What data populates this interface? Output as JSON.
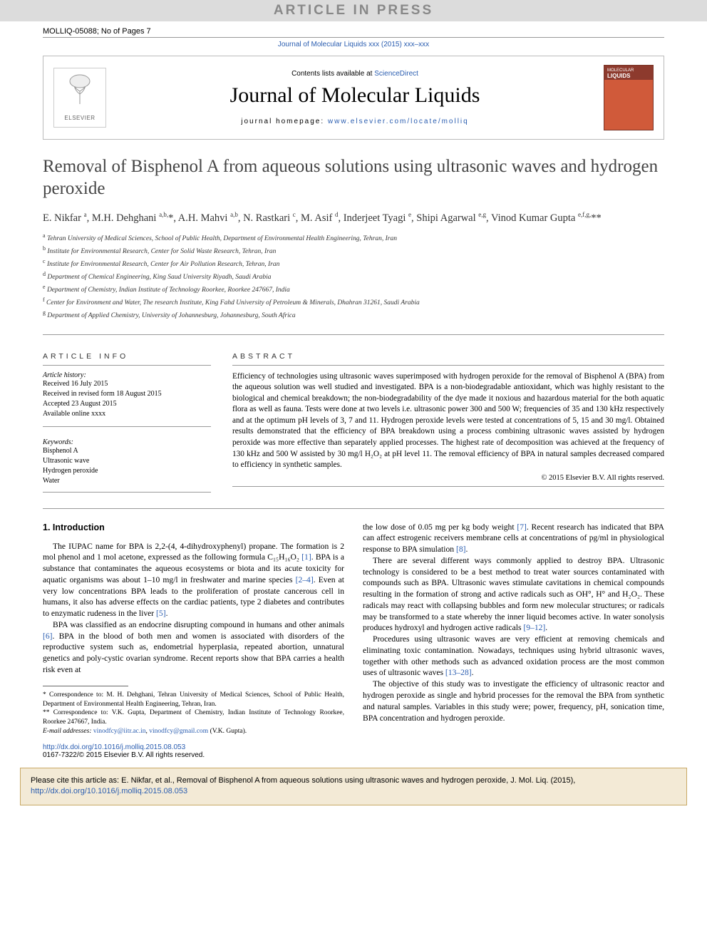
{
  "colors": {
    "link": "#2a5db0",
    "banner_bg": "#dcdcdc",
    "banner_fg": "#888888",
    "cite_bg": "#f3ead6",
    "cite_border": "#c8a864"
  },
  "banner": {
    "text": "ARTICLE IN PRESS"
  },
  "topline": {
    "ref": "MOLLIQ-05088; No of Pages 7"
  },
  "journal_link": "Journal of Molecular Liquids xxx (2015) xxx–xxx",
  "header": {
    "contents_line": "Contents lists available at ",
    "contents_link": "ScienceDirect",
    "journal_name": "Journal of Molecular Liquids",
    "homepage_label": "journal homepage: ",
    "homepage_url": "www.elsevier.com/locate/molliq",
    "publisher": "ELSEVIER",
    "cover_small": "MOLECULAR",
    "cover_big": "LIQUIDS"
  },
  "title": "Removal of Bisphenol A from aqueous solutions using ultrasonic waves and hydrogen peroxide",
  "authors_html": "E. Nikfar <sup>a</sup>, M.H. Dehghani <sup>a,b,</sup>*, A.H. Mahvi <sup>a,b</sup>, N. Rastkari <sup>c</sup>, M. Asif <sup>d</sup>, Inderjeet Tyagi <sup>e</sup>, Shipi Agarwal <sup>e,g</sup>, Vinod Kumar Gupta <sup>e,f,g,</sup>**",
  "affiliations": [
    {
      "sup": "a",
      "text": "Tehran University of Medical Sciences, School of Public Health, Department of Environmental Health Engineering, Tehran, Iran"
    },
    {
      "sup": "b",
      "text": "Institute for Environmental Research, Center for Solid Waste Research, Tehran, Iran"
    },
    {
      "sup": "c",
      "text": "Institute for Environmental Research, Center for Air Pollution Research, Tehran, Iran"
    },
    {
      "sup": "d",
      "text": "Department of Chemical Engineering, King Saud University Riyadh, Saudi Arabia"
    },
    {
      "sup": "e",
      "text": "Department of Chemistry, Indian Institute of Technology Roorkee, Roorkee 247667, India"
    },
    {
      "sup": "f",
      "text": "Center for Environment and Water, The research Institute, King Fahd University of Petroleum & Minerals, Dhahran 31261, Saudi Arabia"
    },
    {
      "sup": "g",
      "text": "Department of Applied Chemistry, University of Johannesburg, Johannesburg, South Africa"
    }
  ],
  "article_info": {
    "heading": "ARTICLE INFO",
    "history_head": "Article history:",
    "history": [
      "Received 16 July 2015",
      "Received in revised form 18 August 2015",
      "Accepted 23 August 2015",
      "Available online xxxx"
    ],
    "kw_head": "Keywords:",
    "keywords": [
      "Bisphenol A",
      "Ultrasonic wave",
      "Hydrogen peroxide",
      "Water"
    ]
  },
  "abstract": {
    "heading": "ABSTRACT",
    "text": "Efficiency of technologies using ultrasonic waves superimposed with hydrogen peroxide for the removal of Bisphenol A (BPA) from the aqueous solution was well studied and investigated. BPA is a non-biodegradable antioxidant, which was highly resistant to the biological and chemical breakdown; the non-biodegradability of the dye made it noxious and hazardous material for the both aquatic flora as well as fauna. Tests were done at two levels i.e. ultrasonic power 300 and 500 W; frequencies of 35 and 130 kHz respectively and at the optimum pH levels of 3, 7 and 11. Hydrogen peroxide levels were tested at concentrations of 5, 15 and 30 mg/l. Obtained results demonstrated that the efficiency of BPA breakdown using a process combining ultrasonic waves assisted by hydrogen peroxide was more effective than separately applied processes. The highest rate of decomposition was achieved at the frequency of 130 kHz and 500 W assisted by 30 mg/l H₂O₂ at pH level 11. The removal efficiency of BPA in natural samples decreased compared to efficiency in synthetic samples.",
    "copyright": "© 2015 Elsevier B.V. All rights reserved."
  },
  "section1": {
    "heading": "1. Introduction",
    "p1": "The IUPAC name for BPA is 2,2-(4, 4-dihydroxyphenyl) propane. The formation is 2 mol phenol and 1 mol acetone, expressed as the following formula C₁₅H₁₆O₂ ",
    "r1": "[1]",
    "p1b": ". BPA is a substance that contaminates the aqueous ecosystems or biota and its acute toxicity for aquatic organisms was about 1–10 mg/l in freshwater and marine species ",
    "r2": "[2–4]",
    "p1c": ". Even at very low concentrations BPA leads to the proliferation of prostate cancerous cell in humans, it also has adverse effects on the cardiac patients, type 2 diabetes and contributes to enzymatic rudeness in the liver ",
    "r3": "[5]",
    "p1d": ".",
    "p2a": "BPA was classified as an endocrine disrupting compound in humans and other animals ",
    "r4": "[6]",
    "p2b": ". BPA in the blood of both men and women is associated with disorders of the reproductive system such as, endometrial hyperplasia, repeated abortion, unnatural genetics and poly-cystic ovarian syndrome. Recent reports show that BPA carries a health risk even at",
    "col2_p1a": "the low dose of 0.05 mg per kg body weight ",
    "r5": "[7]",
    "col2_p1b": ". Recent research has indicated that BPA can affect estrogenic receivers membrane cells at concentrations of pg/ml in physiological response to BPA simulation ",
    "r6": "[8]",
    "col2_p1c": ".",
    "col2_p2a": "There are several different ways commonly applied to destroy BPA. Ultrasonic technology is considered to be a best method to treat water sources contaminated with compounds such as BPA. Ultrasonic waves stimulate cavitations in chemical compounds resulting in the formation of strong and active radicals such as OH°, H° and H₂O₂. These radicals may react with collapsing bubbles and form new molecular structures; or radicals may be transformed to a state whereby the inner liquid becomes active. In water sonolysis produces hydroxyl and hydrogen active radicals ",
    "r7": "[9–12]",
    "col2_p2b": ".",
    "col2_p3a": "Procedures using ultrasonic waves are very efficient at removing chemicals and eliminating toxic contamination. Nowadays, techniques using hybrid ultrasonic waves, together with other methods such as advanced oxidation process are the most common uses of ultrasonic waves ",
    "r8": "[13–28]",
    "col2_p3b": ".",
    "col2_p4": "The objective of this study was to investigate the efficiency of ultrasonic reactor and hydrogen peroxide as single and hybrid processes for the removal the BPA from synthetic and natural samples. Variables in this study were; power, frequency, pH, sonication time, BPA concentration and hydrogen peroxide."
  },
  "footnotes": {
    "f1": "* Correspondence to: M. H. Dehghani, Tehran University of Medical Sciences, School of Public Health, Department of Environmental Health Engineering, Tehran, Iran.",
    "f2": "** Correspondence to: V.K. Gupta, Department of Chemistry, Indian Institute of Technology Roorkee, Roorkee 247667, India.",
    "em_label": "E-mail addresses: ",
    "em1": "vinodfcy@iitr.ac.in",
    "em_sep": ", ",
    "em2": "vinodfcy@gmail.com",
    "em_tail": " (V.K. Gupta)."
  },
  "doi": {
    "url": "http://dx.doi.org/10.1016/j.molliq.2015.08.053",
    "line2": "0167-7322/© 2015 Elsevier B.V. All rights reserved."
  },
  "citebox": {
    "pre": "Please cite this article as: E. Nikfar, et al., Removal of Bisphenol A from aqueous solutions using ultrasonic waves and hydrogen peroxide, J. Mol. Liq. (2015), ",
    "url": "http://dx.doi.org/10.1016/j.molliq.2015.08.053"
  }
}
